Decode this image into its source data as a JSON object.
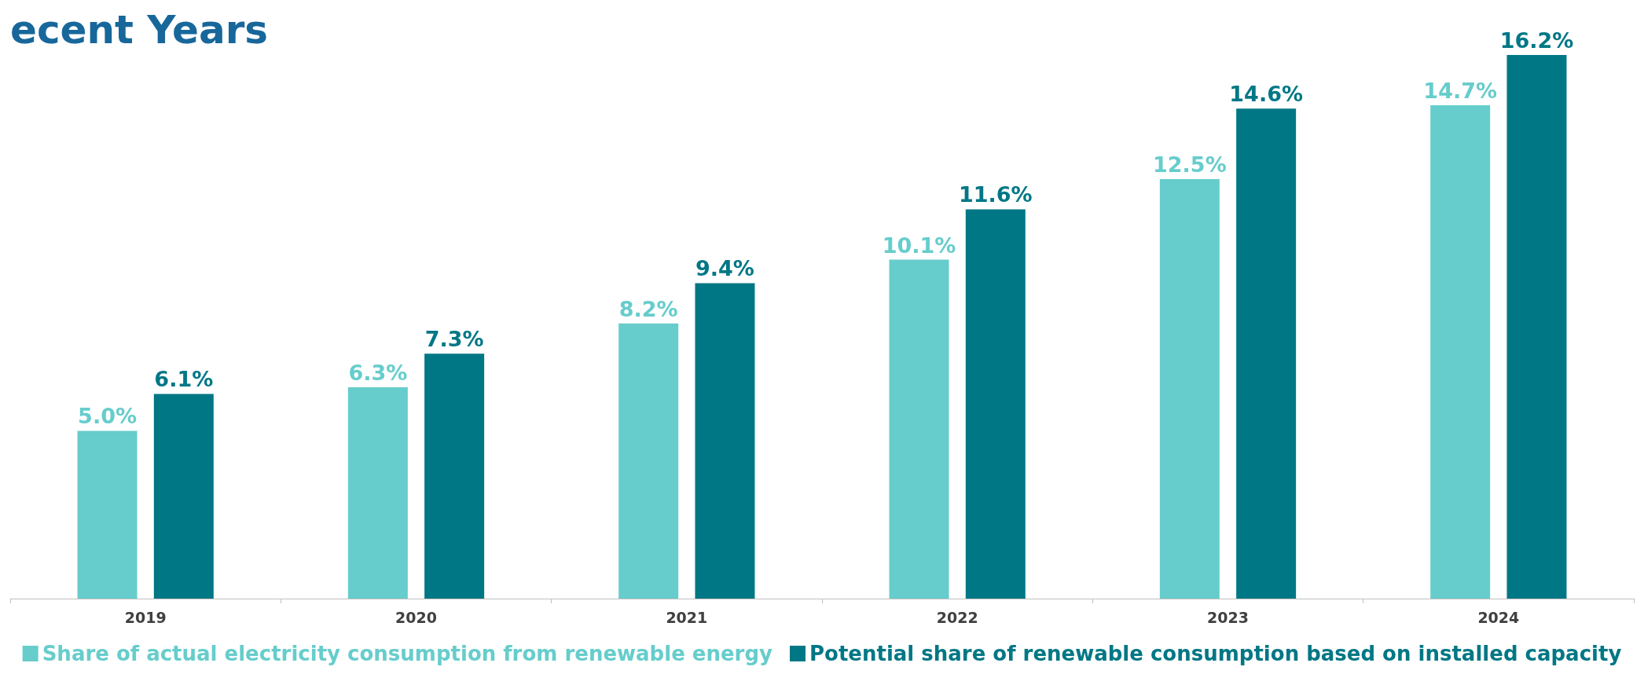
{
  "chart_data": {
    "type": "bar",
    "title": "ecent Years",
    "categories": [
      "2019",
      "2020",
      "2021",
      "2022",
      "2023",
      "2024"
    ],
    "series": [
      {
        "name": "Share of actual electricity consumption from renewable energy",
        "color": "#66cdcc",
        "values": [
          5.0,
          6.3,
          8.2,
          10.1,
          12.5,
          14.7
        ],
        "value_labels": [
          "5.0%",
          "6.3%",
          "8.2%",
          "10.1%",
          "12.5%",
          "14.7%"
        ]
      },
      {
        "name": "Potential share of renewable consumption based on installed capacity",
        "color": "#007785",
        "values": [
          6.1,
          7.3,
          9.4,
          11.6,
          14.6,
          16.2
        ],
        "value_labels": [
          "6.1%",
          "7.3%",
          "9.4%",
          "11.6%",
          "14.6%",
          "16.2%"
        ]
      }
    ],
    "legend": "bottom"
  }
}
